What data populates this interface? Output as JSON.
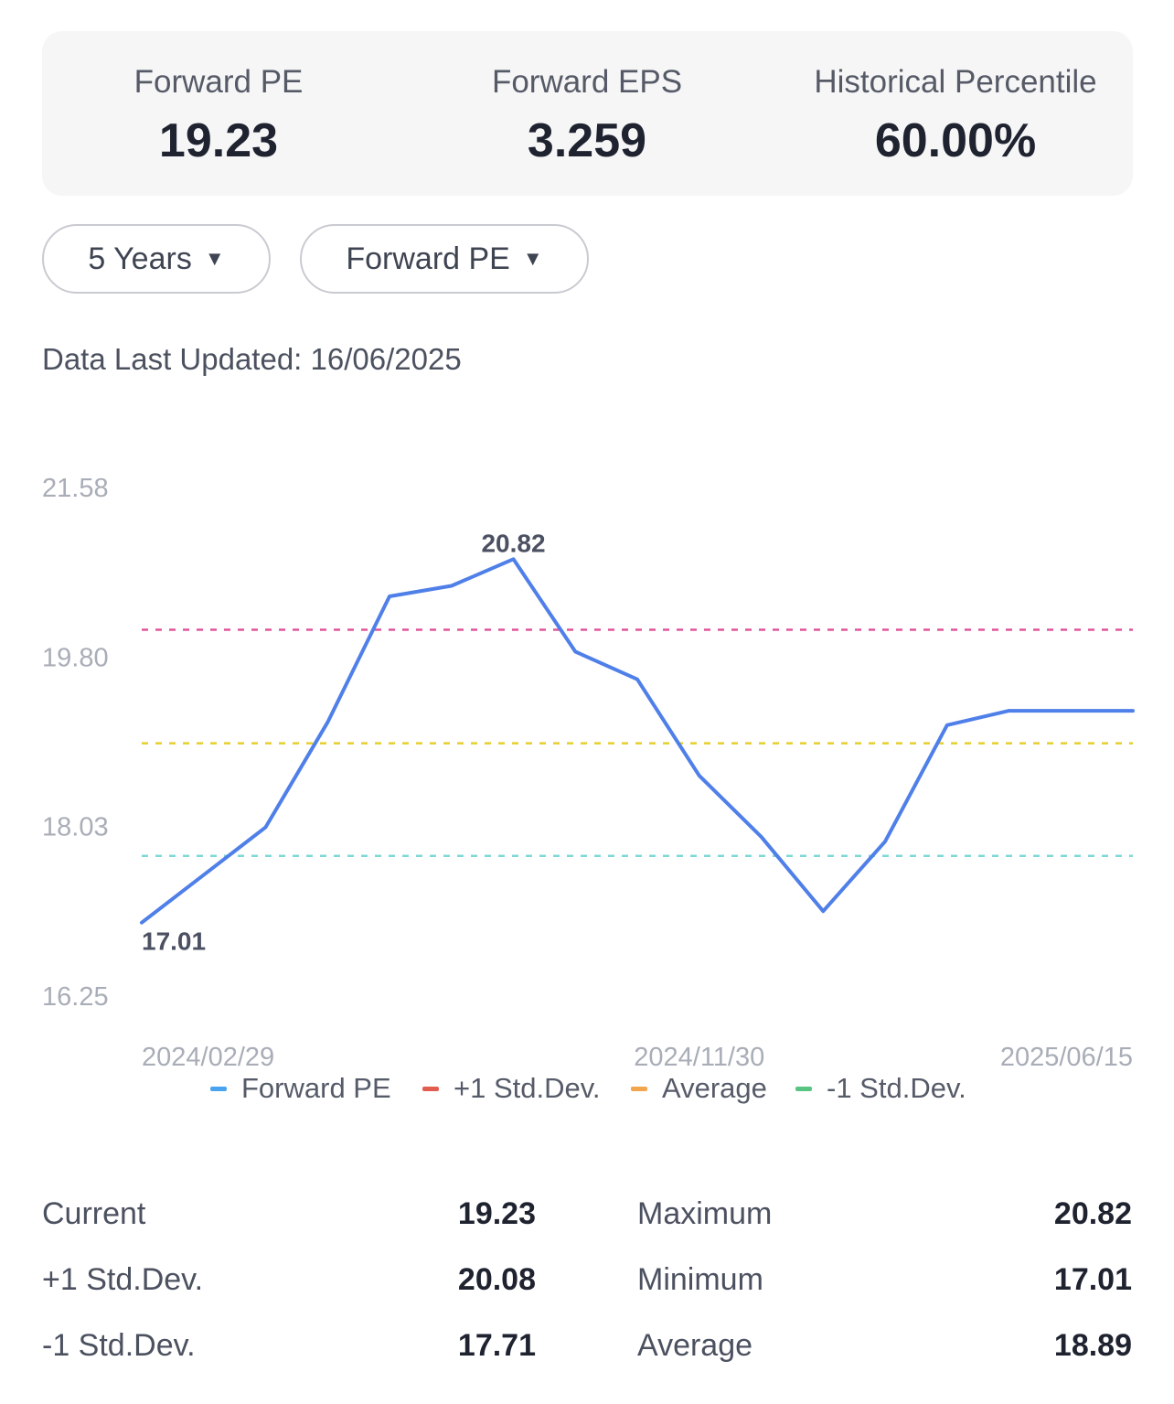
{
  "summary": [
    {
      "label": "Forward PE",
      "value": "19.23"
    },
    {
      "label": "Forward EPS",
      "value": "3.259"
    },
    {
      "label": "Historical Percentile",
      "value": "60.00%"
    }
  ],
  "filters": {
    "period": "5 Years",
    "metric": "Forward PE"
  },
  "data_updated": "Data Last Updated: 16/06/2025",
  "chart_data": {
    "type": "line",
    "y_ticks": [
      "21.58",
      "19.80",
      "18.03",
      "16.25"
    ],
    "ylim": [
      16.25,
      21.58
    ],
    "x_ticks": [
      "2024/02/29",
      "2024/11/30",
      "2025/06/15"
    ],
    "x": [
      "2024/02/29",
      "2024/03/31",
      "2024/04/30",
      "2024/05/31",
      "2024/06/30",
      "2024/07/31",
      "2024/08/31",
      "2024/09/30",
      "2024/10/31",
      "2024/11/30",
      "2024/12/31",
      "2025/01/31",
      "2025/02/28",
      "2025/03/31",
      "2025/04/30",
      "2025/05/31",
      "2025/06/15"
    ],
    "series": [
      {
        "name": "Forward PE",
        "color": "#4f7fe8",
        "values": [
          17.01,
          17.51,
          18.01,
          19.11,
          20.43,
          20.54,
          20.82,
          19.85,
          19.56,
          18.55,
          17.91,
          17.13,
          17.86,
          19.08,
          19.23,
          19.23,
          19.23
        ]
      }
    ],
    "bands": [
      {
        "name": "+1 Std.Dev.",
        "value": 20.08,
        "color": "#e0569b",
        "legend_color": "#e25d4f"
      },
      {
        "name": "Average",
        "value": 18.89,
        "color": "#e6cf2e",
        "legend_color": "#f3a54d"
      },
      {
        "name": "-1 Std.Dev.",
        "value": 17.71,
        "color": "#7fd8d6",
        "legend_color": "#57c482"
      }
    ],
    "annotations": [
      {
        "label": "20.82",
        "series_index": 6
      },
      {
        "label": "17.01",
        "series_index": 0
      }
    ],
    "legend": [
      {
        "name": "Forward PE",
        "color": "#4aa3ef"
      },
      {
        "name": "+1 Std.Dev.",
        "color": "#e25d4f"
      },
      {
        "name": "Average",
        "color": "#f3a54d"
      },
      {
        "name": "-1 Std.Dev.",
        "color": "#57c482"
      }
    ],
    "grid": false,
    "legend_position": "bottom"
  },
  "stats": {
    "rows": [
      {
        "left_label": "Current",
        "left_value": "19.23",
        "right_label": "Maximum",
        "right_value": "20.82"
      },
      {
        "left_label": "+1 Std.Dev.",
        "left_value": "20.08",
        "right_label": "Minimum",
        "right_value": "17.01"
      },
      {
        "left_label": "-1 Std.Dev.",
        "left_value": "17.71",
        "right_label": "Average",
        "right_value": "18.89"
      }
    ]
  }
}
